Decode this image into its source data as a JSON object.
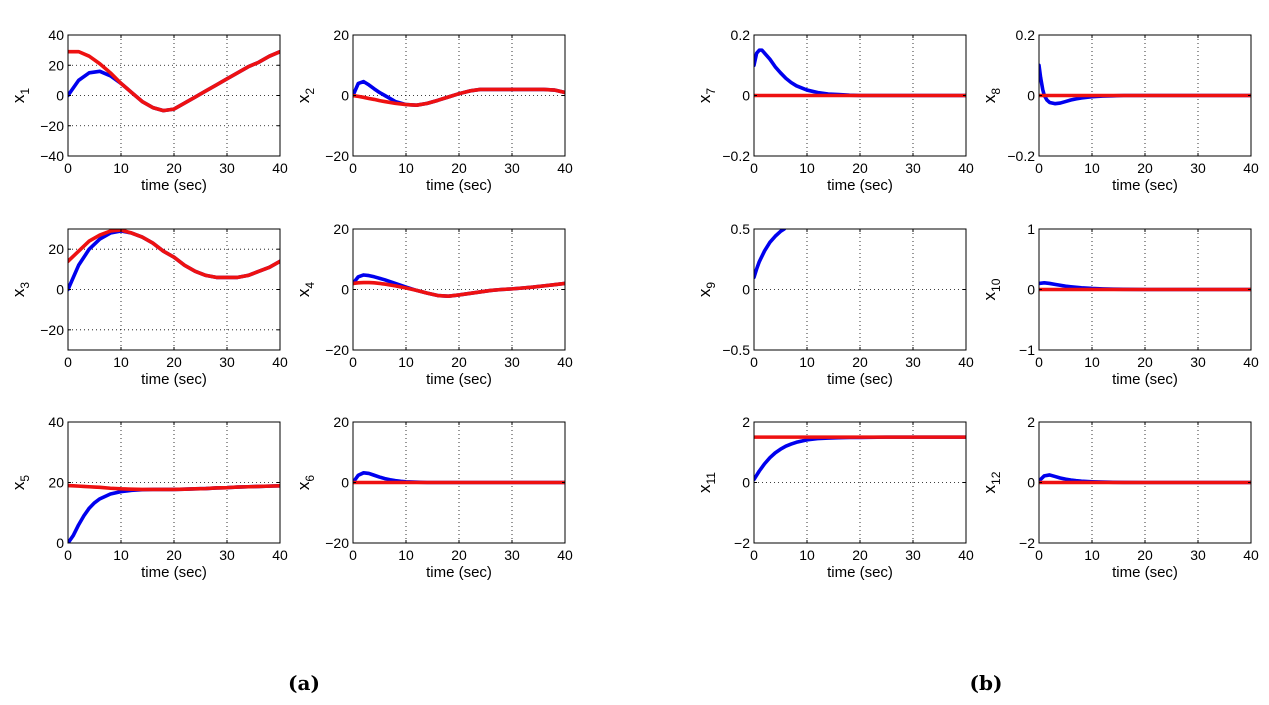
{
  "figure": {
    "group_labels": [
      "(a)",
      "(b)"
    ]
  },
  "style": {
    "series_colors": [
      "#0000ee",
      "#ee1111"
    ],
    "grid": "dotted"
  },
  "chart_data": [
    {
      "type": "line",
      "id": "x1",
      "group": "(a)",
      "xlabel": "time (sec)",
      "ylabel_base": "x",
      "ylabel_sub": "1",
      "xlim": [
        0,
        40
      ],
      "ylim": [
        -40,
        40
      ],
      "xticks": [
        0,
        10,
        20,
        30,
        40
      ],
      "yticks": [
        -40,
        -20,
        0,
        20,
        40
      ],
      "x": [
        0,
        2,
        4,
        6,
        8,
        10,
        12,
        14,
        16,
        18,
        20,
        22,
        24,
        26,
        28,
        30,
        32,
        34,
        36,
        38,
        40
      ],
      "series": [
        {
          "values": [
            0,
            10,
            15,
            16,
            13,
            8,
            2,
            -4,
            -8,
            -10,
            -9,
            -5,
            -1,
            3,
            7,
            11,
            15,
            19,
            22,
            26,
            29
          ]
        },
        {
          "values": [
            29,
            29,
            26,
            21,
            15,
            8,
            2,
            -4,
            -8,
            -10,
            -9,
            -5,
            -1,
            3,
            7,
            11,
            15,
            19,
            22,
            26,
            29
          ]
        }
      ]
    },
    {
      "type": "line",
      "id": "x2",
      "group": "(a)",
      "xlabel": "time (sec)",
      "ylabel_base": "x",
      "ylabel_sub": "2",
      "xlim": [
        0,
        40
      ],
      "ylim": [
        -20,
        20
      ],
      "xticks": [
        0,
        10,
        20,
        30,
        40
      ],
      "yticks": [
        -20,
        0,
        20
      ],
      "x": [
        0,
        1,
        2,
        3,
        4,
        5,
        6,
        8,
        10,
        12,
        14,
        16,
        18,
        20,
        22,
        24,
        26,
        28,
        30,
        32,
        34,
        36,
        38,
        40
      ],
      "series": [
        {
          "values": [
            0,
            4,
            4.6,
            3.5,
            2.2,
            1,
            0,
            -2,
            -3,
            -3.2,
            -2.6,
            -1.6,
            -0.5,
            0.6,
            1.5,
            2,
            2,
            2,
            2,
            2,
            2,
            2,
            1.8,
            1
          ]
        },
        {
          "values": [
            0,
            -0.3,
            -0.6,
            -1,
            -1.3,
            -1.7,
            -2,
            -2.6,
            -3,
            -3.2,
            -2.6,
            -1.6,
            -0.5,
            0.6,
            1.5,
            2,
            2,
            2,
            2,
            2,
            2,
            2,
            1.8,
            1
          ]
        }
      ]
    },
    {
      "type": "line",
      "id": "x3",
      "group": "(a)",
      "xlabel": "time (sec)",
      "ylabel_base": "x",
      "ylabel_sub": "3",
      "xlim": [
        0,
        40
      ],
      "ylim": [
        -30,
        30
      ],
      "xticks": [
        0,
        10,
        20,
        30,
        40
      ],
      "yticks": [
        -20,
        0,
        20
      ],
      "x": [
        0,
        2,
        4,
        6,
        8,
        10,
        12,
        14,
        16,
        18,
        20,
        22,
        24,
        26,
        28,
        30,
        32,
        34,
        36,
        38,
        40
      ],
      "series": [
        {
          "values": [
            0,
            12,
            20,
            25,
            28,
            29,
            28,
            26,
            23,
            19,
            16,
            12,
            9,
            7,
            6,
            6,
            6,
            7,
            9,
            11,
            14
          ]
        },
        {
          "values": [
            14,
            19,
            24,
            27,
            29,
            29.5,
            28,
            26,
            23,
            19,
            16,
            12,
            9,
            7,
            6,
            6,
            6,
            7,
            9,
            11,
            14
          ]
        }
      ]
    },
    {
      "type": "line",
      "id": "x4",
      "group": "(a)",
      "xlabel": "time (sec)",
      "ylabel_base": "x",
      "ylabel_sub": "4",
      "xlim": [
        0,
        40
      ],
      "ylim": [
        -20,
        20
      ],
      "xticks": [
        0,
        10,
        20,
        30,
        40
      ],
      "yticks": [
        -20,
        0,
        20
      ],
      "x": [
        0,
        1,
        2,
        3,
        4,
        6,
        8,
        10,
        12,
        14,
        16,
        18,
        20,
        22,
        24,
        26,
        28,
        30,
        32,
        34,
        36,
        38,
        40
      ],
      "series": [
        {
          "values": [
            2,
            4.2,
            4.8,
            4.6,
            4.2,
            3.2,
            2,
            0.8,
            -0.3,
            -1.2,
            -2,
            -2.2,
            -1.8,
            -1.3,
            -0.8,
            -0.3,
            0,
            0.2,
            0.5,
            0.8,
            1.2,
            1.6,
            2
          ]
        },
        {
          "values": [
            2,
            2.2,
            2.3,
            2.3,
            2.2,
            1.8,
            1.2,
            0.5,
            -0.3,
            -1.2,
            -2,
            -2.2,
            -1.8,
            -1.3,
            -0.8,
            -0.3,
            0,
            0.2,
            0.5,
            0.8,
            1.2,
            1.6,
            2
          ]
        }
      ]
    },
    {
      "type": "line",
      "id": "x5",
      "group": "(a)",
      "xlabel": "time (sec)",
      "ylabel_base": "x",
      "ylabel_sub": "5",
      "xlim": [
        0,
        40
      ],
      "ylim": [
        0,
        40
      ],
      "xticks": [
        0,
        10,
        20,
        30,
        40
      ],
      "yticks": [
        0,
        20,
        40
      ],
      "x": [
        0,
        1,
        2,
        3,
        4,
        5,
        6,
        8,
        10,
        12,
        14,
        16,
        18,
        20,
        22,
        24,
        26,
        28,
        30,
        32,
        34,
        36,
        38,
        40
      ],
      "series": [
        {
          "values": [
            0,
            2.5,
            6,
            9,
            11.5,
            13.3,
            14.6,
            16.2,
            17,
            17.4,
            17.6,
            17.7,
            17.7,
            17.7,
            17.8,
            17.9,
            18,
            18.2,
            18.3,
            18.5,
            18.6,
            18.7,
            18.8,
            18.9
          ]
        },
        {
          "values": [
            19,
            18.9,
            18.8,
            18.7,
            18.6,
            18.5,
            18.4,
            18.1,
            17.9,
            17.8,
            17.7,
            17.7,
            17.7,
            17.7,
            17.8,
            17.9,
            18,
            18.2,
            18.3,
            18.5,
            18.6,
            18.7,
            18.8,
            18.9
          ]
        }
      ]
    },
    {
      "type": "line",
      "id": "x6",
      "group": "(a)",
      "xlabel": "time (sec)",
      "ylabel_base": "x",
      "ylabel_sub": "6",
      "xlim": [
        0,
        40
      ],
      "ylim": [
        -20,
        20
      ],
      "xticks": [
        0,
        10,
        20,
        30,
        40
      ],
      "yticks": [
        -20,
        0,
        20
      ],
      "x": [
        0,
        1,
        2,
        3,
        4,
        5,
        6,
        7,
        8,
        9,
        10,
        12,
        14,
        16,
        18,
        20,
        25,
        30,
        35,
        40
      ],
      "series": [
        {
          "values": [
            0,
            2.4,
            3.2,
            3,
            2.4,
            1.8,
            1.3,
            0.9,
            0.6,
            0.4,
            0.25,
            0.1,
            0,
            0,
            0,
            0,
            0,
            0,
            0,
            0
          ]
        },
        {
          "values": [
            0,
            0,
            0,
            0,
            0,
            0,
            0,
            0,
            0,
            0,
            0,
            0,
            0,
            0,
            0,
            0,
            0,
            0,
            0,
            0
          ]
        }
      ]
    },
    {
      "type": "line",
      "id": "x7",
      "group": "(b)",
      "xlabel": "time (sec)",
      "ylabel_base": "x",
      "ylabel_sub": "7",
      "xlim": [
        0,
        40
      ],
      "ylim": [
        -0.2,
        0.2
      ],
      "xticks": [
        0,
        10,
        20,
        30,
        40
      ],
      "yticks": [
        -0.2,
        0,
        0.2
      ],
      "x": [
        0,
        0.5,
        1,
        1.5,
        2,
        3,
        4,
        5,
        6,
        7,
        8,
        10,
        12,
        14,
        16,
        18,
        20,
        25,
        30,
        35,
        40
      ],
      "series": [
        {
          "values": [
            0.1,
            0.14,
            0.15,
            0.15,
            0.14,
            0.12,
            0.095,
            0.075,
            0.057,
            0.043,
            0.032,
            0.018,
            0.01,
            0.005,
            0.003,
            0.001,
            0,
            0,
            0,
            0,
            0
          ]
        },
        {
          "values": [
            0,
            0,
            0,
            0,
            0,
            0,
            0,
            0,
            0,
            0,
            0,
            0,
            0,
            0,
            0,
            0,
            0,
            0,
            0,
            0,
            0
          ]
        }
      ]
    },
    {
      "type": "line",
      "id": "x8",
      "group": "(b)",
      "xlabel": "time (sec)",
      "ylabel_base": "x",
      "ylabel_sub": "8",
      "xlim": [
        0,
        40
      ],
      "ylim": [
        -0.2,
        0.2
      ],
      "xticks": [
        0,
        10,
        20,
        30,
        40
      ],
      "yticks": [
        -0.2,
        0,
        0.2
      ],
      "x": [
        0,
        0.3,
        0.7,
        1,
        1.5,
        2,
        3,
        4,
        5,
        6,
        7,
        8,
        10,
        12,
        14,
        16,
        20,
        25,
        30,
        35,
        40
      ],
      "series": [
        {
          "values": [
            0.1,
            0.06,
            0.02,
            0,
            -0.015,
            -0.023,
            -0.027,
            -0.025,
            -0.02,
            -0.015,
            -0.011,
            -0.008,
            -0.004,
            -0.002,
            -0.001,
            0,
            0,
            0,
            0,
            0,
            0
          ]
        },
        {
          "values": [
            0,
            0,
            0,
            0,
            0,
            0,
            0,
            0,
            0,
            0,
            0,
            0,
            0,
            0,
            0,
            0,
            0,
            0,
            0,
            0,
            0
          ]
        }
      ]
    },
    {
      "type": "line",
      "id": "x9",
      "group": "(b)",
      "xlabel": "time (sec)",
      "ylabel_base": "x",
      "ylabel_sub": "9",
      "xlim": [
        0,
        40
      ],
      "ylim": [
        -0.5,
        0.5
      ],
      "xticks": [
        0,
        10,
        20,
        30,
        40
      ],
      "yticks": [
        -0.5,
        0,
        0.5
      ],
      "x": [
        0,
        0.5,
        1,
        2,
        3,
        4,
        5,
        5.7
      ],
      "series": [
        {
          "values": [
            0.1,
            0.17,
            0.23,
            0.32,
            0.39,
            0.44,
            0.48,
            0.5
          ]
        }
      ]
    },
    {
      "type": "line",
      "id": "x10",
      "group": "(b)",
      "xlabel": "time (sec)",
      "ylabel_base": "x",
      "ylabel_sub": "10",
      "xlim": [
        0,
        40
      ],
      "ylim": [
        -1,
        1
      ],
      "xticks": [
        0,
        10,
        20,
        30,
        40
      ],
      "yticks": [
        -1,
        0,
        1
      ],
      "x": [
        0,
        1,
        2,
        3,
        4,
        5,
        6,
        8,
        10,
        12,
        14,
        16,
        20,
        25,
        30,
        35,
        40
      ],
      "series": [
        {
          "values": [
            0.1,
            0.11,
            0.1,
            0.085,
            0.07,
            0.055,
            0.045,
            0.028,
            0.017,
            0.01,
            0.006,
            0.003,
            0,
            0,
            0,
            0,
            0
          ]
        },
        {
          "values": [
            0,
            0,
            0,
            0,
            0,
            0,
            0,
            0,
            0,
            0,
            0,
            0,
            0,
            0,
            0,
            0,
            0
          ]
        }
      ]
    },
    {
      "type": "line",
      "id": "x11",
      "group": "(b)",
      "xlabel": "time (sec)",
      "ylabel_base": "x",
      "ylabel_sub": "11",
      "xlim": [
        0,
        40
      ],
      "ylim": [
        -2,
        2
      ],
      "xticks": [
        0,
        10,
        20,
        30,
        40
      ],
      "yticks": [
        -2,
        0,
        2
      ],
      "x": [
        0,
        1,
        2,
        3,
        4,
        5,
        6,
        7,
        8,
        10,
        12,
        14,
        16,
        18,
        20,
        25,
        30,
        35,
        40
      ],
      "series": [
        {
          "values": [
            0.1,
            0.38,
            0.62,
            0.82,
            0.98,
            1.1,
            1.2,
            1.27,
            1.33,
            1.41,
            1.45,
            1.47,
            1.48,
            1.49,
            1.49,
            1.5,
            1.5,
            1.5,
            1.5
          ]
        },
        {
          "values": [
            1.5,
            1.5,
            1.5,
            1.5,
            1.5,
            1.5,
            1.5,
            1.5,
            1.5,
            1.5,
            1.5,
            1.5,
            1.5,
            1.5,
            1.5,
            1.5,
            1.5,
            1.5,
            1.5
          ]
        }
      ]
    },
    {
      "type": "line",
      "id": "x12",
      "group": "(b)",
      "xlabel": "time (sec)",
      "ylabel_base": "x",
      "ylabel_sub": "12",
      "xlim": [
        0,
        40
      ],
      "ylim": [
        -2,
        2
      ],
      "xticks": [
        0,
        10,
        20,
        30,
        40
      ],
      "yticks": [
        -2,
        0,
        2
      ],
      "x": [
        0,
        1,
        2,
        3,
        4,
        5,
        6,
        7,
        8,
        10,
        12,
        14,
        16,
        20,
        25,
        30,
        35,
        40
      ],
      "series": [
        {
          "values": [
            0.05,
            0.22,
            0.25,
            0.2,
            0.15,
            0.11,
            0.08,
            0.06,
            0.045,
            0.025,
            0.013,
            0.007,
            0.003,
            0,
            0,
            0,
            0,
            0
          ]
        },
        {
          "values": [
            0,
            0,
            0,
            0,
            0,
            0,
            0,
            0,
            0,
            0,
            0,
            0,
            0,
            0,
            0,
            0,
            0,
            0
          ]
        }
      ]
    }
  ]
}
